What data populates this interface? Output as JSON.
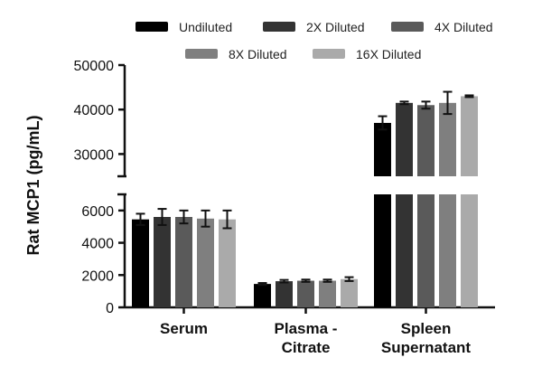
{
  "chart_data": {
    "type": "bar",
    "ylabel": "Rat MCP1 (pg/mL)",
    "xlabel": "",
    "categories": [
      [
        "Serum"
      ],
      [
        "Plasma -",
        "Citrate"
      ],
      [
        "Spleen",
        "Supernatant"
      ]
    ],
    "y_axis_break": {
      "lower_range": [
        0,
        7000
      ],
      "upper_range": [
        25000,
        50000
      ],
      "lower_ticks": [
        "0",
        "2000",
        "4000",
        "6000"
      ],
      "upper_ticks": [
        "30000",
        "40000",
        "50000"
      ]
    },
    "legend_position": "top",
    "series": [
      {
        "name": "Undiluted",
        "color": "#000000",
        "values": [
          5450,
          1450,
          37000
        ],
        "errors": [
          350,
          60,
          1500
        ]
      },
      {
        "name": "2X Diluted",
        "color": "#333333",
        "values": [
          5600,
          1620,
          41500
        ],
        "errors": [
          500,
          80,
          300
        ]
      },
      {
        "name": "4X Diluted",
        "color": "#5a5a5a",
        "values": [
          5600,
          1650,
          41000
        ],
        "errors": [
          400,
          70,
          800
        ]
      },
      {
        "name": "8X Diluted",
        "color": "#7f7f7f",
        "values": [
          5500,
          1650,
          41500
        ],
        "errors": [
          500,
          70,
          2500
        ]
      },
      {
        "name": "16X Diluted",
        "color": "#aaaaaa",
        "values": [
          5450,
          1750,
          43000
        ],
        "errors": [
          550,
          120,
          200
        ]
      }
    ],
    "grid": false
  }
}
